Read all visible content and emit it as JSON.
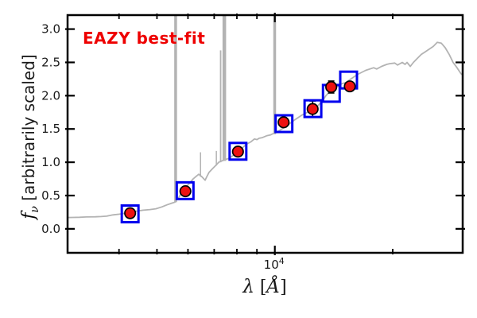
{
  "figure": {
    "annotation": {
      "text": "EAZY best-fit",
      "color": "#ee0000"
    },
    "xlabel": {
      "symbol": "λ",
      "bracket_open": " [",
      "unit": "Å",
      "bracket_close": "]"
    },
    "ylabel": {
      "symbol": "f",
      "subscript": "ν",
      "rest": " [arbitrarily scaled]"
    }
  },
  "chart_data": {
    "type": "line",
    "title": "EAZY best-fit",
    "xlabel": "λ [Å]",
    "ylabel": "f_ν [arbitrarily scaled]",
    "x_scale": "log",
    "grid": false,
    "legend": "none",
    "xlim": [
      2956,
      30180
    ],
    "ylim": [
      -0.36,
      3.21
    ],
    "x_major_ticks": [
      {
        "value": 10000,
        "label_base": "10",
        "label_exp": "4"
      }
    ],
    "x_minor_ticks": [
      4000,
      5000,
      6000,
      7000,
      8000,
      9000,
      20000
    ],
    "y_ticks": [
      {
        "value": 0.0,
        "label": "0.0"
      },
      {
        "value": 0.5,
        "label": "0.5"
      },
      {
        "value": 1.0,
        "label": "1.0"
      },
      {
        "value": 1.5,
        "label": "1.5"
      },
      {
        "value": 2.0,
        "label": "2.0"
      },
      {
        "value": 2.5,
        "label": "2.5"
      },
      {
        "value": 3.0,
        "label": "3.0"
      }
    ],
    "colors": {
      "spectrum": "#b3b3b3",
      "observed_fill": "#ee1111",
      "observed_edge": "#000000",
      "model_edge": "#0000ee",
      "axis": "#000000",
      "annotation": "#ee0000"
    },
    "series": [
      {
        "name": "best-fit template spectrum",
        "type": "line",
        "color": "#b3b3b3",
        "points": [
          [
            2956,
            0.17
          ],
          [
            3050,
            0.171
          ],
          [
            3171,
            0.174
          ],
          [
            3300,
            0.178
          ],
          [
            3482,
            0.181
          ],
          [
            3600,
            0.184
          ],
          [
            3718,
            0.19
          ],
          [
            3860,
            0.21
          ],
          [
            4006,
            0.22
          ],
          [
            4150,
            0.235
          ],
          [
            4278,
            0.25
          ],
          [
            4430,
            0.265
          ],
          [
            4609,
            0.28
          ],
          [
            4800,
            0.29
          ],
          [
            4968,
            0.302
          ],
          [
            5150,
            0.33
          ],
          [
            5302,
            0.36
          ],
          [
            5450,
            0.385
          ],
          [
            5557,
            0.4
          ],
          [
            5620,
            0.44
          ],
          [
            5700,
            0.48
          ],
          [
            5823,
            0.59
          ],
          [
            5950,
            0.64
          ],
          [
            6046,
            0.68
          ],
          [
            6188,
            0.75
          ],
          [
            6300,
            0.79
          ],
          [
            6394,
            0.82
          ],
          [
            6515,
            0.78
          ],
          [
            6637,
            0.73
          ],
          [
            6700,
            0.78
          ],
          [
            6794,
            0.85
          ],
          [
            6922,
            0.9
          ],
          [
            7087,
            0.96
          ],
          [
            7187,
            1.0
          ],
          [
            7322,
            1.02
          ],
          [
            7636,
            1.06
          ],
          [
            7817,
            1.1
          ],
          [
            8039,
            1.17
          ],
          [
            8267,
            1.22
          ],
          [
            8462,
            1.27
          ],
          [
            8703,
            1.31
          ],
          [
            8867,
            1.35
          ],
          [
            9000,
            1.34
          ],
          [
            9120,
            1.36
          ],
          [
            9292,
            1.37
          ],
          [
            9557,
            1.4
          ],
          [
            9737,
            1.41
          ],
          [
            9900,
            1.43
          ],
          [
            10109,
            1.45
          ],
          [
            10299,
            1.48
          ],
          [
            10493,
            1.51
          ],
          [
            10792,
            1.56
          ],
          [
            11203,
            1.63
          ],
          [
            11740,
            1.71
          ],
          [
            12302,
            1.77
          ],
          [
            12892,
            1.85
          ],
          [
            13257,
            1.93
          ],
          [
            13507,
            2.0
          ],
          [
            13826,
            2.06
          ],
          [
            14152,
            2.1
          ],
          [
            14486,
            2.14
          ],
          [
            14828,
            2.18
          ],
          [
            15251,
            2.2
          ],
          [
            15539,
            2.24
          ],
          [
            16283,
            2.32
          ],
          [
            17063,
            2.38
          ],
          [
            17880,
            2.42
          ],
          [
            18200,
            2.4
          ],
          [
            18737,
            2.44
          ],
          [
            19300,
            2.47
          ],
          [
            19634,
            2.48
          ],
          [
            20250,
            2.49
          ],
          [
            20575,
            2.46
          ],
          [
            21160,
            2.5
          ],
          [
            21500,
            2.47
          ],
          [
            21762,
            2.5
          ],
          [
            22180,
            2.44
          ],
          [
            22590,
            2.5
          ],
          [
            23125,
            2.56
          ],
          [
            23670,
            2.62
          ],
          [
            24228,
            2.66
          ],
          [
            24800,
            2.7
          ],
          [
            25385,
            2.74
          ],
          [
            25984,
            2.8
          ],
          [
            26598,
            2.79
          ],
          [
            27225,
            2.72
          ],
          [
            27868,
            2.62
          ],
          [
            28526,
            2.5
          ],
          [
            29199,
            2.42
          ],
          [
            29889,
            2.33
          ],
          [
            30180,
            2.31
          ]
        ]
      },
      {
        "name": "observed photometry",
        "type": "scatter",
        "marker": "circle",
        "points": [
          {
            "lambda": 4270,
            "flux": 0.235,
            "err": 0.05
          },
          {
            "lambda": 5910,
            "flux": 0.565,
            "err": 0.05
          },
          {
            "lambda": 8050,
            "flux": 1.16,
            "err": 0.06
          },
          {
            "lambda": 10530,
            "flux": 1.6,
            "err": 0.07
          },
          {
            "lambda": 12490,
            "flux": 1.8,
            "err": 0.12
          },
          {
            "lambda": 13930,
            "flux": 2.13,
            "err": 0.09
          },
          {
            "lambda": 15540,
            "flux": 2.14,
            "err": 0.06
          }
        ]
      },
      {
        "name": "model photometry",
        "type": "scatter",
        "marker": "open-square",
        "points": [
          {
            "lambda": 4270,
            "flux": 0.225
          },
          {
            "lambda": 5900,
            "flux": 0.573
          },
          {
            "lambda": 8050,
            "flux": 1.165
          },
          {
            "lambda": 10550,
            "flux": 1.58
          },
          {
            "lambda": 12510,
            "flux": 1.805
          },
          {
            "lambda": 13940,
            "flux": 2.035
          },
          {
            "lambda": 15430,
            "flux": 2.235
          }
        ]
      }
    ],
    "emission_lines": [
      {
        "lambda": 5580,
        "base": 0.4,
        "peak": 3.6,
        "width": 3.5,
        "clipped_at_top": true
      },
      {
        "lambda": 6460,
        "base": 0.78,
        "peak": 1.15,
        "width": 1.5,
        "clipped_at_top": false
      },
      {
        "lambda": 7090,
        "base": 0.95,
        "peak": 1.17,
        "width": 1.5,
        "clipped_at_top": false
      },
      {
        "lambda": 7270,
        "base": 1.0,
        "peak": 2.68,
        "width": 1.8,
        "clipped_at_top": false
      },
      {
        "lambda": 7430,
        "base": 1.02,
        "peak": 3.6,
        "width": 4.5,
        "clipped_at_top": true
      },
      {
        "lambda": 9990,
        "base": 1.42,
        "peak": 3.6,
        "width": 3.5,
        "clipped_at_top": true
      }
    ]
  }
}
